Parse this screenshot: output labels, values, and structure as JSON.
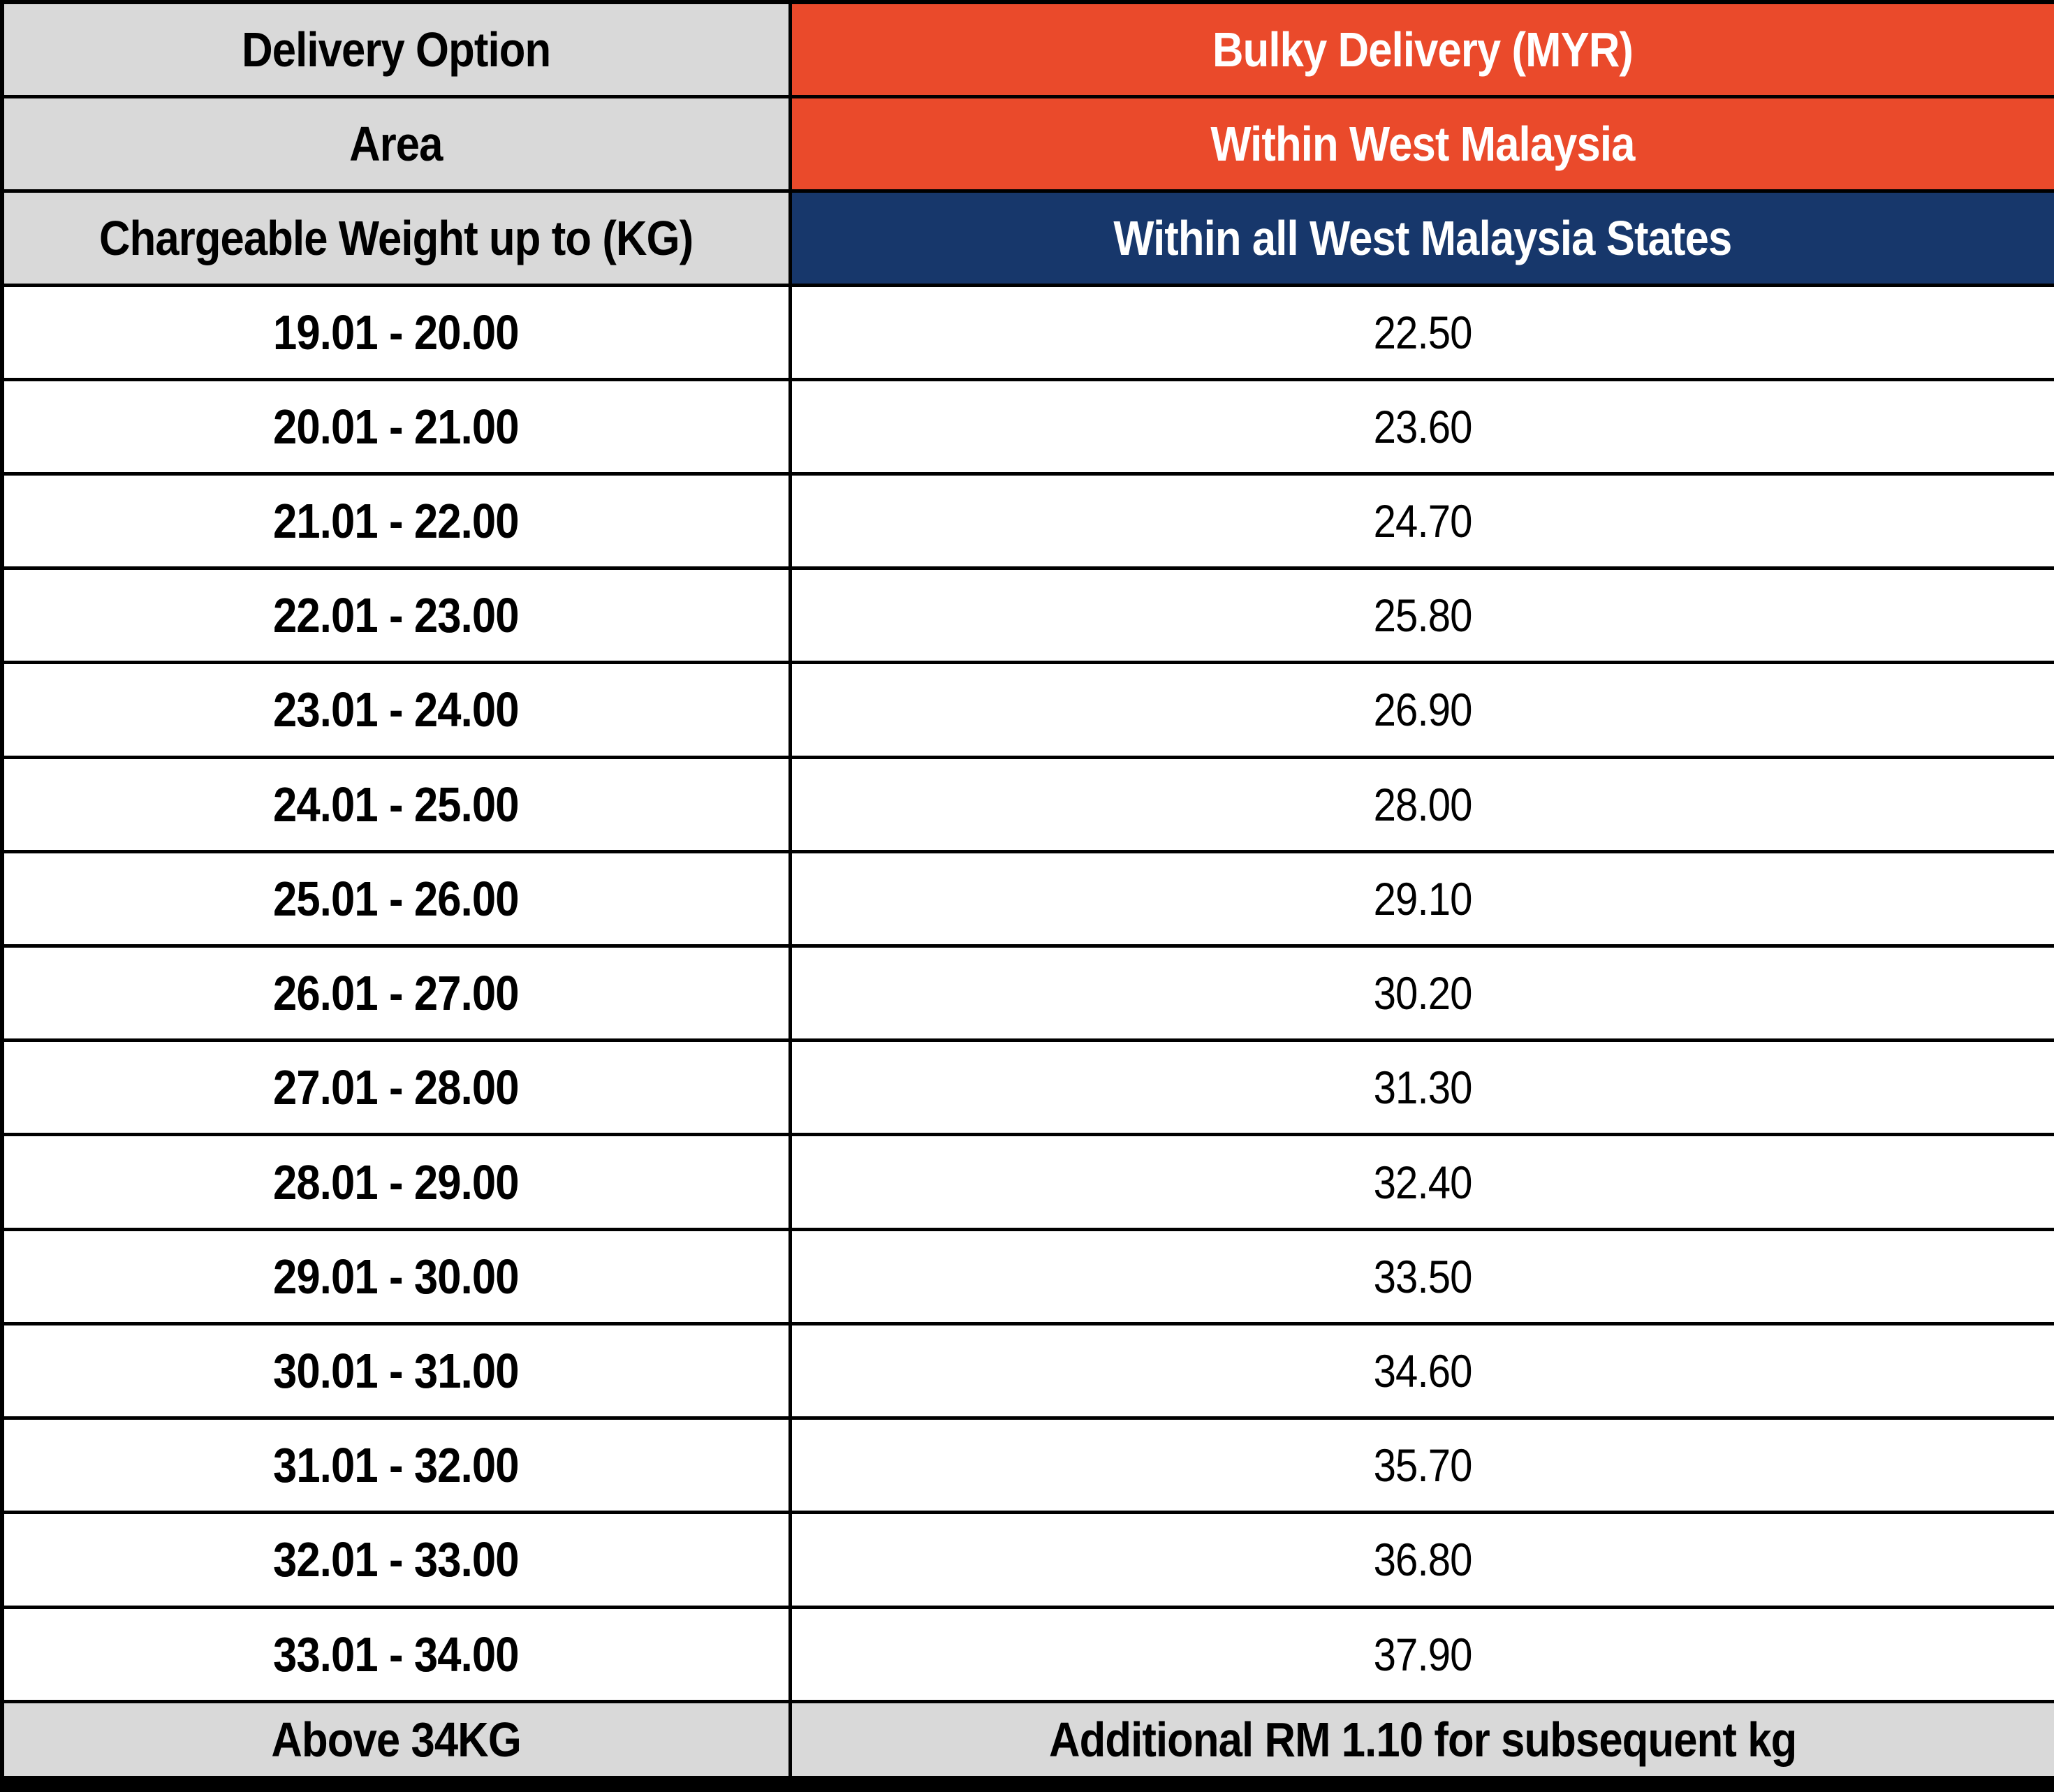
{
  "colors": {
    "orange": "#EA4A2B",
    "navy": "#17376B",
    "gray": "#D9D9D9",
    "border": "#000000",
    "text_dark": "#000000",
    "text_light": "#FFFFFF"
  },
  "header": {
    "delivery_option_label": "Delivery Option",
    "bulky_delivery_label": "Bulky Delivery (MYR)",
    "area_label": "Area",
    "area_value": "Within West Malaysia",
    "weight_label": "Chargeable Weight up to (KG)",
    "zone_label": "Within all West Malaysia States"
  },
  "rows": [
    {
      "weight": "19.01 - 20.00",
      "price": "22.50"
    },
    {
      "weight": "20.01 - 21.00",
      "price": "23.60"
    },
    {
      "weight": "21.01 - 22.00",
      "price": "24.70"
    },
    {
      "weight": "22.01 - 23.00",
      "price": "25.80"
    },
    {
      "weight": "23.01 - 24.00",
      "price": "26.90"
    },
    {
      "weight": "24.01 - 25.00",
      "price": "28.00"
    },
    {
      "weight": "25.01 - 26.00",
      "price": "29.10"
    },
    {
      "weight": "26.01 - 27.00",
      "price": "30.20"
    },
    {
      "weight": "27.01 - 28.00",
      "price": "31.30"
    },
    {
      "weight": "28.01 - 29.00",
      "price": "32.40"
    },
    {
      "weight": "29.01 - 30.00",
      "price": "33.50"
    },
    {
      "weight": "30.01 - 31.00",
      "price": "34.60"
    },
    {
      "weight": "31.01 - 32.00",
      "price": "35.70"
    },
    {
      "weight": "32.01 - 33.00",
      "price": "36.80"
    },
    {
      "weight": "33.01 - 34.00",
      "price": "37.90"
    }
  ],
  "footer": {
    "above_label": "Above 34KG",
    "additional_label": "Additional RM 1.10 for subsequent kg"
  }
}
